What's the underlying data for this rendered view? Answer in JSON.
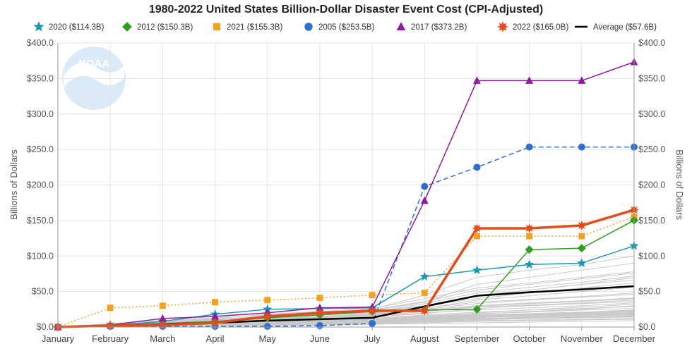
{
  "chart_data": {
    "type": "line",
    "title": "1980-2022 United States Billion-Dollar Disaster Event Cost (CPI-Adjusted)",
    "ylabel_left": "Billions of Dollars",
    "ylabel_right": "Billions of Dollars",
    "categories": [
      "January",
      "February",
      "March",
      "April",
      "May",
      "June",
      "July",
      "August",
      "September",
      "October",
      "November",
      "December"
    ],
    "ylim": [
      0,
      400
    ],
    "yticks": [
      0,
      50,
      100,
      150,
      200,
      250,
      300,
      350,
      400
    ],
    "ytick_labels_left": [
      "$0.0",
      "$50.0",
      "$100.0",
      "$150.0",
      "$200.0",
      "$250.0",
      "$300.0",
      "$350.0",
      "$400.0"
    ],
    "ytick_labels_right": [
      "$0.0",
      "$50.0",
      "$100.0",
      "$150.0",
      "$200.0",
      "$250.0",
      "$300.0",
      "$350.0",
      "$400.0"
    ],
    "grid": true,
    "legend_position": "top",
    "watermark": "NOAA",
    "series": [
      {
        "name": "2020 ($114.3B)",
        "color": "#1a97b5",
        "marker": "star5",
        "dash": "solid",
        "width": 1.5,
        "values": [
          0,
          2,
          8,
          18,
          25,
          26,
          27,
          71,
          80,
          88,
          90,
          114.3
        ]
      },
      {
        "name": "2012 ($150.3B)",
        "color": "#2f9e1f",
        "marker": "diamond",
        "dash": "solid",
        "width": 1.5,
        "values": [
          0,
          2,
          5,
          8,
          13,
          17,
          22,
          24,
          25,
          109,
          111,
          150.3
        ]
      },
      {
        "name": "2021 ($155.3B)",
        "color": "#f2a223",
        "marker": "square",
        "dash": "dotted",
        "width": 1.5,
        "values": [
          0,
          27,
          30,
          35,
          38,
          41,
          45,
          48,
          128,
          128,
          128,
          155.3
        ]
      },
      {
        "name": "2005 ($253.5B)",
        "color": "#2f6fce",
        "marker": "circle",
        "dash": "dashed",
        "width": 1.5,
        "values": [
          0,
          1,
          1,
          1,
          1,
          2,
          5,
          198,
          225,
          253.5,
          253.5,
          253.5
        ]
      },
      {
        "name": "2017 ($373.2B)",
        "color": "#8e1c9e",
        "marker": "triangle",
        "dash": "solid",
        "width": 1.5,
        "values": [
          0,
          3,
          12,
          15,
          20,
          27,
          28,
          178,
          347,
          347,
          347,
          373.2
        ]
      },
      {
        "name": "2022 ($165.0B)",
        "color": "#e24b1c",
        "marker": "star8",
        "dash": "solid",
        "width": 3.5,
        "values": [
          0,
          2,
          3,
          6,
          15,
          20,
          23,
          23,
          139,
          139,
          143,
          165.0
        ]
      },
      {
        "name": "Average ($57.6B)",
        "color": "#000000",
        "marker": "none",
        "dash": "solid",
        "width": 2.5,
        "values": [
          0,
          2,
          4,
          6,
          9,
          11,
          13,
          29,
          44,
          49,
          53,
          57.6
        ]
      }
    ],
    "background_series": {
      "color": "#c8c8c8",
      "values": [
        [
          0,
          1,
          2,
          3,
          5,
          6,
          8,
          12,
          20,
          24,
          28,
          32
        ],
        [
          0,
          2,
          3,
          5,
          7,
          9,
          11,
          15,
          18,
          22,
          25,
          30
        ],
        [
          0,
          1,
          1,
          2,
          3,
          4,
          5,
          8,
          10,
          12,
          14,
          16
        ],
        [
          0,
          3,
          5,
          8,
          12,
          15,
          18,
          25,
          33,
          38,
          42,
          46
        ],
        [
          0,
          2,
          4,
          7,
          10,
          14,
          18,
          30,
          45,
          52,
          60,
          70
        ],
        [
          0,
          1,
          2,
          2,
          3,
          4,
          6,
          7,
          9,
          10,
          11,
          12
        ],
        [
          0,
          4,
          8,
          12,
          18,
          22,
          26,
          40,
          55,
          62,
          70,
          78
        ],
        [
          0,
          1,
          3,
          4,
          6,
          8,
          9,
          11,
          13,
          16,
          18,
          20
        ],
        [
          0,
          2,
          5,
          9,
          14,
          18,
          23,
          35,
          60,
          70,
          80,
          90
        ],
        [
          0,
          1,
          2,
          3,
          4,
          5,
          6,
          9,
          11,
          13,
          15,
          18
        ],
        [
          0,
          2,
          3,
          6,
          9,
          12,
          15,
          22,
          28,
          31,
          34,
          38
        ],
        [
          0,
          3,
          6,
          10,
          15,
          20,
          25,
          45,
          70,
          80,
          88,
          100
        ],
        [
          0,
          1,
          1,
          2,
          2,
          3,
          4,
          5,
          6,
          7,
          8,
          9
        ],
        [
          0,
          2,
          4,
          6,
          9,
          11,
          14,
          20,
          24,
          27,
          30,
          34
        ],
        [
          0,
          1,
          2,
          4,
          5,
          7,
          8,
          10,
          12,
          14,
          16,
          17
        ],
        [
          0,
          3,
          5,
          7,
          11,
          14,
          17,
          26,
          38,
          44,
          50,
          56
        ],
        [
          0,
          2,
          3,
          4,
          6,
          7,
          9,
          12,
          15,
          17,
          19,
          22
        ],
        [
          0,
          1,
          2,
          3,
          4,
          6,
          7,
          9,
          11,
          12,
          13,
          14
        ],
        [
          0,
          4,
          7,
          11,
          15,
          19,
          22,
          30,
          40,
          48,
          55,
          62
        ],
        [
          0,
          1,
          3,
          5,
          8,
          10,
          12,
          16,
          19,
          21,
          24,
          26
        ],
        [
          0,
          2,
          4,
          5,
          7,
          9,
          10,
          13,
          16,
          18,
          20,
          23
        ],
        [
          0,
          3,
          4,
          6,
          9,
          12,
          14,
          19,
          26,
          30,
          33,
          36
        ],
        [
          0,
          1,
          2,
          3,
          5,
          6,
          7,
          10,
          12,
          13,
          14,
          15
        ],
        [
          0,
          2,
          5,
          8,
          12,
          15,
          19,
          28,
          43,
          52,
          60,
          66
        ],
        [
          0,
          1,
          2,
          3,
          4,
          5,
          5,
          6,
          8,
          9,
          10,
          11
        ],
        [
          0,
          3,
          6,
          9,
          13,
          17,
          20,
          27,
          35,
          39,
          43,
          48
        ],
        [
          0,
          2,
          3,
          5,
          7,
          9,
          11,
          14,
          17,
          19,
          21,
          24
        ],
        [
          0,
          1,
          3,
          4,
          6,
          8,
          10,
          13,
          16,
          18,
          20,
          22
        ],
        [
          0,
          4,
          7,
          10,
          14,
          18,
          21,
          33,
          48,
          56,
          63,
          72
        ],
        [
          0,
          2,
          4,
          6,
          8,
          10,
          12,
          17,
          21,
          24,
          26,
          29
        ],
        [
          0,
          1,
          2,
          3,
          5,
          6,
          8,
          11,
          14,
          16,
          18,
          19
        ],
        [
          0,
          3,
          5,
          8,
          11,
          14,
          16,
          22,
          29,
          33,
          36,
          40
        ],
        [
          0,
          2,
          3,
          4,
          6,
          8,
          9,
          12,
          14,
          15,
          17,
          18
        ],
        [
          0,
          1,
          2,
          4,
          5,
          7,
          9,
          12,
          15,
          17,
          19,
          21
        ],
        [
          0,
          5,
          9,
          13,
          17,
          21,
          24,
          36,
          52,
          60,
          68,
          76
        ],
        [
          0,
          2,
          4,
          7,
          10,
          13,
          16,
          24,
          30,
          34,
          37,
          41
        ]
      ]
    }
  }
}
